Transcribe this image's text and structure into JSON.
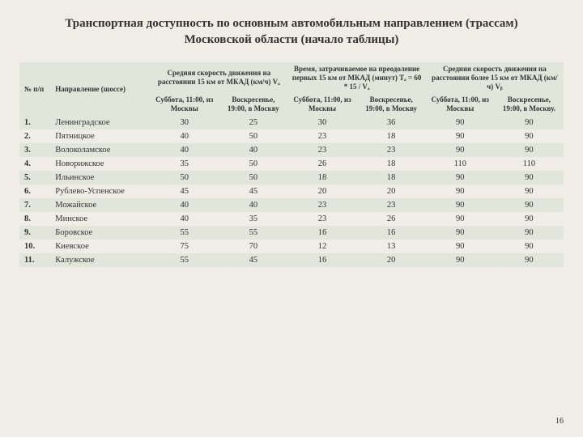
{
  "title": "Транспортная доступность по основным автомобильным направлением (трассам) Московской области (начало таблицы)",
  "page_number": "16",
  "header": {
    "col_idx": "№ п/п",
    "col_dir": "Направление (шоссе)",
    "group1": "Средняя скорость движения на расстоянии 15 км от МКАД (км/ч) Vₐ",
    "group2": "Время, затрачиваемое на преодоление первых 15 км от МКАД (минут) Tₐ = 60 * 15 / Vₐ",
    "group3": "Средняя скорость движения на расстоянии более 15 км от МКАД (км/ч) Vᵦ",
    "sub_sat": "Суббота, 11:00, из Москвы",
    "sub_sun_in": "Воскресенье, 19:00, в Москву",
    "sub_sun_dot": "Воскресенье, 19:00, в Москву."
  },
  "rows": [
    {
      "n": "1.",
      "dir": "Ленинградское",
      "c1": "30",
      "c2": "25",
      "c3": "30",
      "c4": "36",
      "c5": "90",
      "c6": "90"
    },
    {
      "n": "2.",
      "dir": "Пятницкое",
      "c1": "40",
      "c2": "50",
      "c3": "23",
      "c4": "18",
      "c5": "90",
      "c6": "90"
    },
    {
      "n": "3.",
      "dir": "Волоколамское",
      "c1": "40",
      "c2": "40",
      "c3": "23",
      "c4": "23",
      "c5": "90",
      "c6": "90"
    },
    {
      "n": "4.",
      "dir": "Новорижское",
      "c1": "35",
      "c2": "50",
      "c3": "26",
      "c4": "18",
      "c5": "110",
      "c6": "110"
    },
    {
      "n": "5.",
      "dir": "Ильинское",
      "c1": "50",
      "c2": "50",
      "c3": "18",
      "c4": "18",
      "c5": "90",
      "c6": "90"
    },
    {
      "n": "6.",
      "dir": "Рублево-Успенское",
      "c1": "45",
      "c2": "45",
      "c3": "20",
      "c4": "20",
      "c5": "90",
      "c6": "90"
    },
    {
      "n": "7.",
      "dir": "Можайское",
      "c1": "40",
      "c2": "40",
      "c3": "23",
      "c4": "23",
      "c5": "90",
      "c6": "90"
    },
    {
      "n": "8.",
      "dir": "Минское",
      "c1": "40",
      "c2": "35",
      "c3": "23",
      "c4": "26",
      "c5": "90",
      "c6": "90"
    },
    {
      "n": "9.",
      "dir": "Боровское",
      "c1": "55",
      "c2": "55",
      "c3": "16",
      "c4": "16",
      "c5": "90",
      "c6": "90"
    },
    {
      "n": "10.",
      "dir": "Киевское",
      "c1": "75",
      "c2": "70",
      "c3": "12",
      "c4": "13",
      "c5": "90",
      "c6": "90"
    },
    {
      "n": "11.",
      "dir": "Калужское",
      "c1": "55",
      "c2": "45",
      "c3": "16",
      "c4": "20",
      "c5": "90",
      "c6": "90"
    }
  ],
  "colors": {
    "page_bg": "#f0ede6",
    "header_bg": "#e2e5d9",
    "alt_row_bg": "#e2e5d9",
    "text": "#333333"
  },
  "column_widths_pct": [
    6,
    18,
    12.67,
    12.67,
    12.67,
    12.67,
    12.67,
    12.67
  ]
}
